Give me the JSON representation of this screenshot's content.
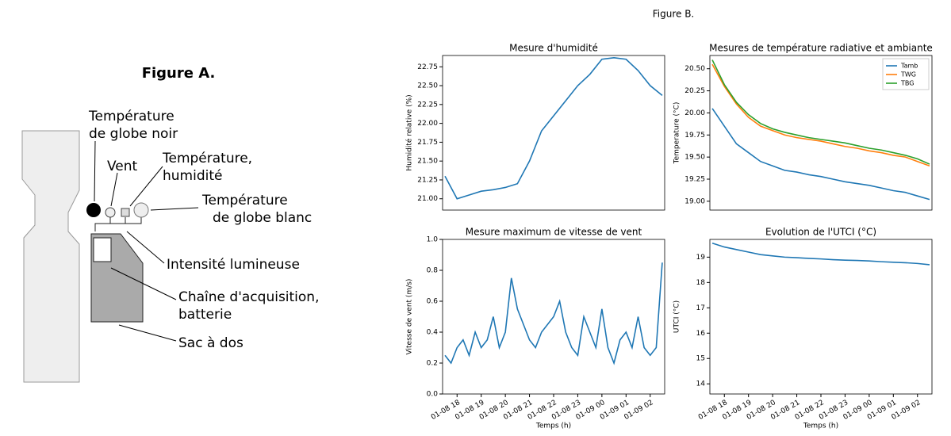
{
  "figure_a": {
    "title": "Figure A.",
    "labels": [
      [
        "Température",
        "de globe noir"
      ],
      [
        "Vent"
      ],
      [
        "Température,",
        "humidité"
      ],
      [
        "Température",
        "de globe blanc"
      ],
      [
        "Intensité lumineuse"
      ],
      [
        "Chaîne d'acquisition,",
        "batterie"
      ],
      [
        "Sac à dos"
      ]
    ]
  },
  "figure_b_title": "Figure B.",
  "chart_data": [
    {
      "type": "line",
      "title": "Mesure d'humidité",
      "ylabel": "Humidité relative (%)",
      "x": [
        17.5,
        18,
        18.5,
        19,
        19.5,
        20,
        20.5,
        21,
        21.5,
        22,
        22.5,
        23,
        23.5,
        24,
        24.5,
        25,
        25.5,
        26,
        26.5
      ],
      "values": [
        21.3,
        21.0,
        21.05,
        21.1,
        21.12,
        21.15,
        21.2,
        21.5,
        21.9,
        22.1,
        22.3,
        22.5,
        22.65,
        22.85,
        22.87,
        22.85,
        22.7,
        22.5,
        22.37
      ],
      "color": "#1f77b4",
      "xlim": [
        17.4,
        26.6
      ],
      "ylim": [
        20.85,
        22.9
      ],
      "yticks": [
        {
          "value": 21,
          "label": "21.00"
        },
        {
          "value": 21.25,
          "label": "21.25"
        },
        {
          "value": 21.5,
          "label": "21.50"
        },
        {
          "value": 21.75,
          "label": "21.75"
        },
        {
          "value": 22,
          "label": "22.00"
        },
        {
          "value": 22.25,
          "label": "22.25"
        },
        {
          "value": 22.5,
          "label": "22.50"
        },
        {
          "value": 22.75,
          "label": "22.75"
        }
      ]
    },
    {
      "type": "line",
      "title": "Mesures de température radiative et ambiante",
      "ylabel": "Temperature (°C)",
      "x": [
        17.5,
        18,
        18.5,
        19,
        19.5,
        20,
        20.5,
        21,
        21.5,
        22,
        22.5,
        23,
        23.5,
        24,
        24.5,
        25,
        25.5,
        26,
        26.5
      ],
      "series": [
        {
          "name": "Tamb",
          "color": "#1f77b4",
          "values": [
            20.05,
            19.85,
            19.65,
            19.55,
            19.45,
            19.4,
            19.35,
            19.33,
            19.3,
            19.28,
            19.25,
            19.22,
            19.2,
            19.18,
            19.15,
            19.12,
            19.1,
            19.06,
            19.02
          ]
        },
        {
          "name": "TWG",
          "color": "#ff7f0e",
          "values": [
            20.55,
            20.3,
            20.1,
            19.95,
            19.85,
            19.8,
            19.75,
            19.72,
            19.7,
            19.68,
            19.65,
            19.62,
            19.6,
            19.57,
            19.55,
            19.52,
            19.5,
            19.45,
            19.4
          ]
        },
        {
          "name": "TBG",
          "color": "#2ca02c",
          "values": [
            20.6,
            20.32,
            20.12,
            19.98,
            19.88,
            19.82,
            19.78,
            19.75,
            19.72,
            19.7,
            19.68,
            19.66,
            19.63,
            19.6,
            19.58,
            19.55,
            19.52,
            19.48,
            19.42
          ]
        }
      ],
      "legend": "upper right",
      "xlim": [
        17.4,
        26.6
      ],
      "ylim": [
        18.9,
        20.65
      ],
      "yticks": [
        {
          "value": 19,
          "label": "19.00"
        },
        {
          "value": 19.25,
          "label": "19.25"
        },
        {
          "value": 19.5,
          "label": "19.50"
        },
        {
          "value": 19.75,
          "label": "19.75"
        },
        {
          "value": 20,
          "label": "20.00"
        },
        {
          "value": 20.25,
          "label": "20.25"
        },
        {
          "value": 20.5,
          "label": "20.50"
        }
      ]
    },
    {
      "type": "line",
      "title": "Mesure maximum de vitesse de vent",
      "ylabel": "Vitesse de vent (m/s)",
      "xlabel": "Temps (h)",
      "x": [
        17.5,
        17.75,
        18,
        18.25,
        18.5,
        18.75,
        19,
        19.25,
        19.5,
        19.75,
        20,
        20.25,
        20.5,
        20.75,
        21,
        21.25,
        21.5,
        21.75,
        22,
        22.25,
        22.5,
        22.75,
        23,
        23.25,
        23.5,
        23.75,
        24,
        24.25,
        24.5,
        24.75,
        25,
        25.25,
        25.5,
        25.75,
        26,
        26.25,
        26.5
      ],
      "values": [
        0.25,
        0.2,
        0.3,
        0.35,
        0.25,
        0.4,
        0.3,
        0.35,
        0.5,
        0.3,
        0.4,
        0.75,
        0.55,
        0.45,
        0.35,
        0.3,
        0.4,
        0.45,
        0.5,
        0.6,
        0.4,
        0.3,
        0.25,
        0.5,
        0.4,
        0.3,
        0.55,
        0.3,
        0.2,
        0.35,
        0.4,
        0.3,
        0.5,
        0.3,
        0.25,
        0.3,
        0.85
      ],
      "color": "#1f77b4",
      "xlim": [
        17.4,
        26.6
      ],
      "ylim": [
        0,
        1
      ],
      "xticks": [
        {
          "value": 18,
          "label": "01-08 18"
        },
        {
          "value": 19,
          "label": "01-08 19"
        },
        {
          "value": 20,
          "label": "01-08 20"
        },
        {
          "value": 21,
          "label": "01-08 21"
        },
        {
          "value": 22,
          "label": "01-08 22"
        },
        {
          "value": 23,
          "label": "01-08 23"
        },
        {
          "value": 24,
          "label": "01-09 00"
        },
        {
          "value": 25,
          "label": "01-09 01"
        },
        {
          "value": 26,
          "label": "01-09 02"
        }
      ],
      "yticks": [
        {
          "value": 0,
          "label": "0.0"
        },
        0.2,
        0.4,
        0.6,
        0.8,
        {
          "value": 1,
          "label": "1.0"
        }
      ]
    },
    {
      "type": "line",
      "title": "Evolution de l'UTCI (°C)",
      "ylabel": "UTCI (°C)",
      "xlabel": "Temps (h)",
      "x": [
        17.5,
        18,
        18.5,
        19,
        19.5,
        20,
        20.5,
        21,
        21.5,
        22,
        22.5,
        23,
        23.5,
        24,
        24.5,
        25,
        25.5,
        26,
        26.5
      ],
      "values": [
        19.55,
        19.4,
        19.3,
        19.2,
        19.1,
        19.05,
        19.0,
        18.98,
        18.95,
        18.93,
        18.9,
        18.88,
        18.87,
        18.85,
        18.82,
        18.8,
        18.78,
        18.75,
        18.7
      ],
      "color": "#1f77b4",
      "xlim": [
        17.4,
        26.6
      ],
      "ylim": [
        13.6,
        19.7
      ],
      "xticks": [
        {
          "value": 18,
          "label": "01-08 18"
        },
        {
          "value": 19,
          "label": "01-08 19"
        },
        {
          "value": 20,
          "label": "01-08 20"
        },
        {
          "value": 21,
          "label": "01-08 21"
        },
        {
          "value": 22,
          "label": "01-08 22"
        },
        {
          "value": 23,
          "label": "01-08 23"
        },
        {
          "value": 24,
          "label": "01-09 00"
        },
        {
          "value": 25,
          "label": "01-09 01"
        },
        {
          "value": 26,
          "label": "01-09 02"
        }
      ],
      "yticks": [
        14,
        15,
        16,
        17,
        18,
        19
      ]
    }
  ]
}
